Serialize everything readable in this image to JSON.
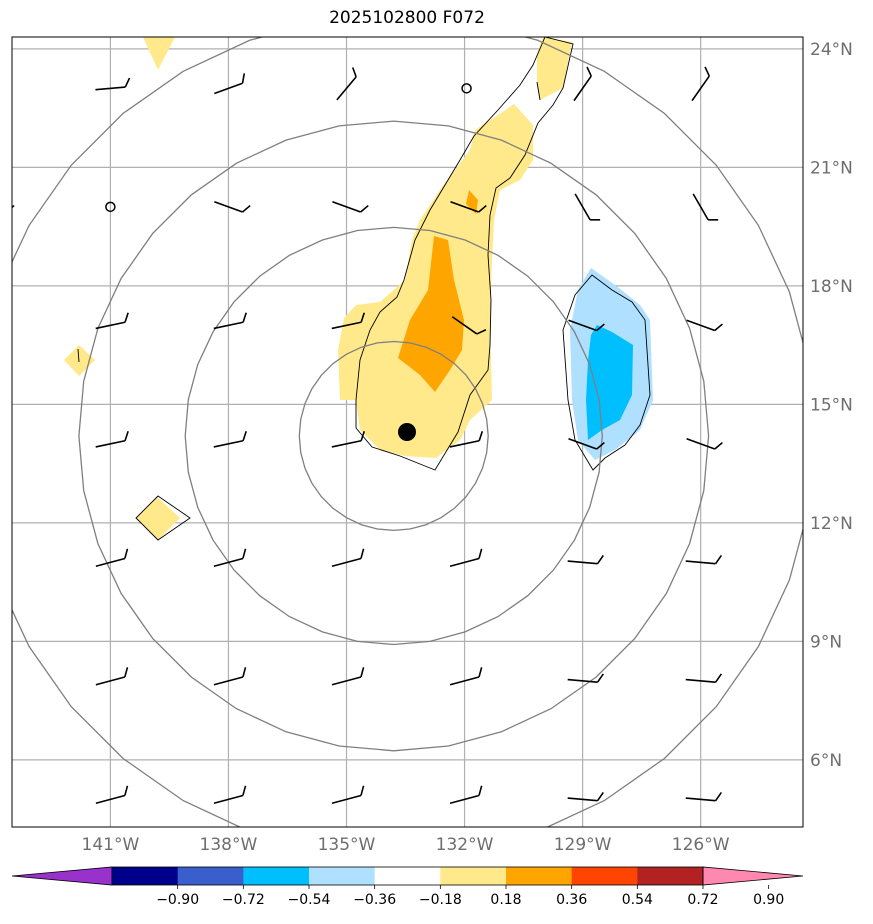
{
  "title": "2025102800 F072",
  "map": {
    "lon_range": [
      -143.5,
      -123.4
    ],
    "lat_range": [
      4.3,
      24.3
    ],
    "lat_ticks": [
      {
        "value": 24,
        "label": "24°N"
      },
      {
        "value": 21,
        "label": "21°N"
      },
      {
        "value": 18,
        "label": "18°N"
      },
      {
        "value": 15,
        "label": "15°N"
      },
      {
        "value": 12,
        "label": "12°N"
      },
      {
        "value": 9,
        "label": "9°N"
      },
      {
        "value": 6,
        "label": "6°N"
      }
    ],
    "lon_ticks": [
      {
        "value": -141,
        "label": "141°W"
      },
      {
        "value": -138,
        "label": "138°W"
      },
      {
        "value": -135,
        "label": "135°W"
      },
      {
        "value": -132,
        "label": "132°W"
      },
      {
        "value": -129,
        "label": "129°W"
      },
      {
        "value": -126,
        "label": "126°W"
      }
    ],
    "storm_center": {
      "lon": -133.8,
      "lat": 14.2
    },
    "range_ring_radii_deg": [
      2.4,
      5.3,
      8.0,
      10.7
    ]
  },
  "colorbar": {
    "colors": [
      "#9932cc",
      "#00008b",
      "#3a5fcd",
      "#00bfff",
      "#b0e0ff",
      "#ffffff",
      "#ffe98a",
      "#ffa500",
      "#ff4500",
      "#b22222",
      "#ff88b0"
    ],
    "tick_labels": [
      "−0.90",
      "−0.72",
      "−0.54",
      "−0.36",
      "−0.18",
      "0.18",
      "0.36",
      "0.54",
      "0.72",
      "0.90"
    ]
  },
  "icons": {
    "barb": "wind-barb-icon",
    "calm": "calm-wind-circle-icon",
    "center": "storm-center-icon"
  }
}
